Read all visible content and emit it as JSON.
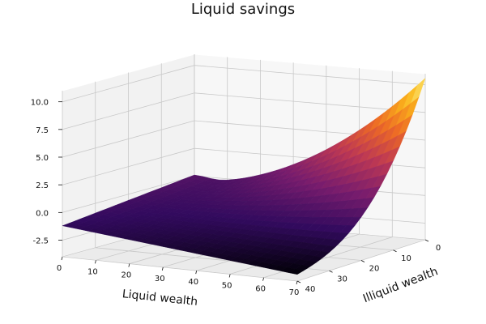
{
  "chart_data": {
    "type": "surface",
    "title": "Liquid savings",
    "xlabel": "Liquid wealth",
    "ylabel": "Illiquid wealth",
    "zlabel": "",
    "xlim": [
      0,
      70
    ],
    "ylim": [
      0,
      40
    ],
    "zlim": [
      -4,
      11
    ],
    "xticks": [
      "0",
      "10",
      "20",
      "30",
      "40",
      "50",
      "60",
      "70"
    ],
    "yticks": [
      "0",
      "10",
      "20",
      "30",
      "40"
    ],
    "zticks": [
      "-2.5",
      "0.0",
      "2.5",
      "5.0",
      "7.5",
      "10.0"
    ],
    "colormap": [
      "#000004",
      "#320a5e",
      "#781c6d",
      "#bc3754",
      "#ed6925",
      "#fbb61a",
      "#fcffa4"
    ],
    "grid": true,
    "corner_values": {
      "liquid_0_illiquid_0": -0.4,
      "liquid_70_illiquid_0": 10.5,
      "liquid_0_illiquid_40": -1.2,
      "liquid_70_illiquid_40": -3.3
    }
  }
}
